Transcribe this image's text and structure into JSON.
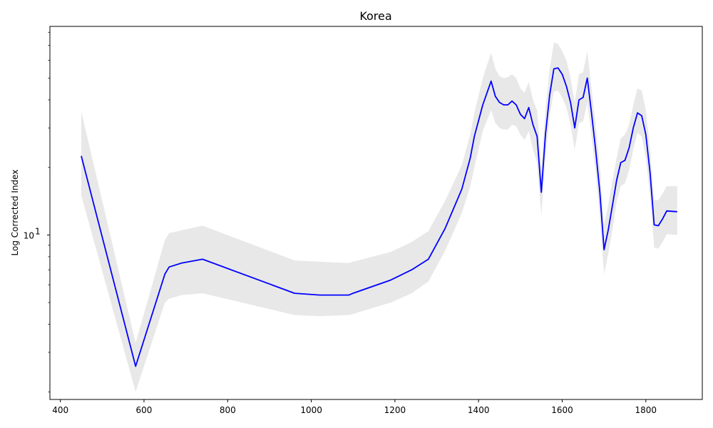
{
  "chart_data": {
    "type": "line",
    "title": "Korea",
    "xlabel": "",
    "ylabel": "Log Corrected Index",
    "yscale": "log",
    "xlim": [
      375,
      1935
    ],
    "ylim": [
      1.85,
      85
    ],
    "grid": false,
    "x_ticks": [
      400,
      600,
      800,
      1000,
      1200,
      1400,
      1600,
      1800
    ],
    "y_ticks": [
      {
        "value": 10,
        "base": "10",
        "exp": "1"
      }
    ],
    "y_minor_ticks": [
      2,
      3,
      4,
      5,
      6,
      7,
      8,
      9,
      20,
      30,
      40,
      50,
      60,
      70,
      80
    ],
    "colors": {
      "line": "#0000ff",
      "band": "#e8e8e8"
    },
    "series": [
      {
        "x": [
          450,
          580,
          650,
          660,
          690,
          740,
          960,
          1020,
          1090,
          1100,
          1190,
          1240,
          1280,
          1320,
          1360,
          1380,
          1390,
          1410,
          1430,
          1440,
          1450,
          1460,
          1470,
          1480,
          1490,
          1500,
          1510,
          1520,
          1530,
          1540,
          1550,
          1560,
          1570,
          1580,
          1590,
          1600,
          1610,
          1620,
          1630,
          1640,
          1650,
          1660,
          1670,
          1680,
          1690,
          1700,
          1710,
          1720,
          1730,
          1740,
          1750,
          1760,
          1770,
          1780,
          1790,
          1800,
          1810,
          1820,
          1830,
          1840,
          1850,
          1875
        ],
        "values": [
          22.5,
          2.6,
          6.7,
          7.2,
          7.5,
          7.8,
          5.5,
          5.4,
          5.4,
          5.5,
          6.3,
          7.0,
          7.8,
          10.7,
          16.0,
          22.0,
          27.5,
          38.0,
          48.5,
          41.5,
          39.0,
          38.0,
          38.0,
          39.5,
          38.0,
          34.5,
          33.0,
          37.0,
          31.0,
          27.5,
          15.5,
          28.0,
          42.0,
          55.0,
          55.5,
          52.0,
          46.0,
          39.0,
          30.0,
          40.0,
          41.0,
          50.0,
          35.0,
          24.0,
          15.5,
          8.6,
          10.5,
          13.5,
          17.5,
          21.0,
          21.5,
          24.5,
          30.0,
          35.0,
          34.0,
          28.0,
          19.0,
          11.1,
          11.0,
          11.8,
          12.8,
          12.7
        ],
        "lower": [
          15.0,
          2.0,
          5.0,
          5.2,
          5.4,
          5.5,
          4.4,
          4.35,
          4.4,
          4.45,
          5.0,
          5.5,
          6.2,
          8.5,
          12.5,
          16.5,
          20.0,
          29.0,
          36.0,
          31.5,
          30.0,
          29.5,
          29.5,
          31.0,
          30.5,
          28.0,
          26.5,
          29.0,
          24.0,
          21.0,
          12.2,
          22.0,
          34.0,
          43.5,
          44.0,
          41.0,
          37.0,
          31.0,
          24.0,
          31.5,
          32.0,
          39.0,
          27.5,
          19.0,
          12.0,
          6.7,
          8.2,
          10.5,
          14.0,
          16.5,
          17.0,
          19.5,
          24.0,
          28.5,
          27.5,
          22.0,
          15.0,
          8.8,
          8.7,
          9.3,
          10.1,
          10.0
        ],
        "upper": [
          35.5,
          3.3,
          9.5,
          10.2,
          10.5,
          11.0,
          7.7,
          7.6,
          7.5,
          7.6,
          8.4,
          9.3,
          10.4,
          14.2,
          20.5,
          28.0,
          35.0,
          50.0,
          65.0,
          55.0,
          51.0,
          50.0,
          50.5,
          52.0,
          50.0,
          45.0,
          43.0,
          48.0,
          40.0,
          36.0,
          20.0,
          36.0,
          55.0,
          72.0,
          71.0,
          66.0,
          60.0,
          50.0,
          39.0,
          52.0,
          53.0,
          66.0,
          45.0,
          31.0,
          20.0,
          11.1,
          13.5,
          17.5,
          22.0,
          27.0,
          28.0,
          31.0,
          38.0,
          45.0,
          44.0,
          36.0,
          24.0,
          14.3,
          14.3,
          15.3,
          16.5,
          16.5
        ]
      }
    ]
  }
}
